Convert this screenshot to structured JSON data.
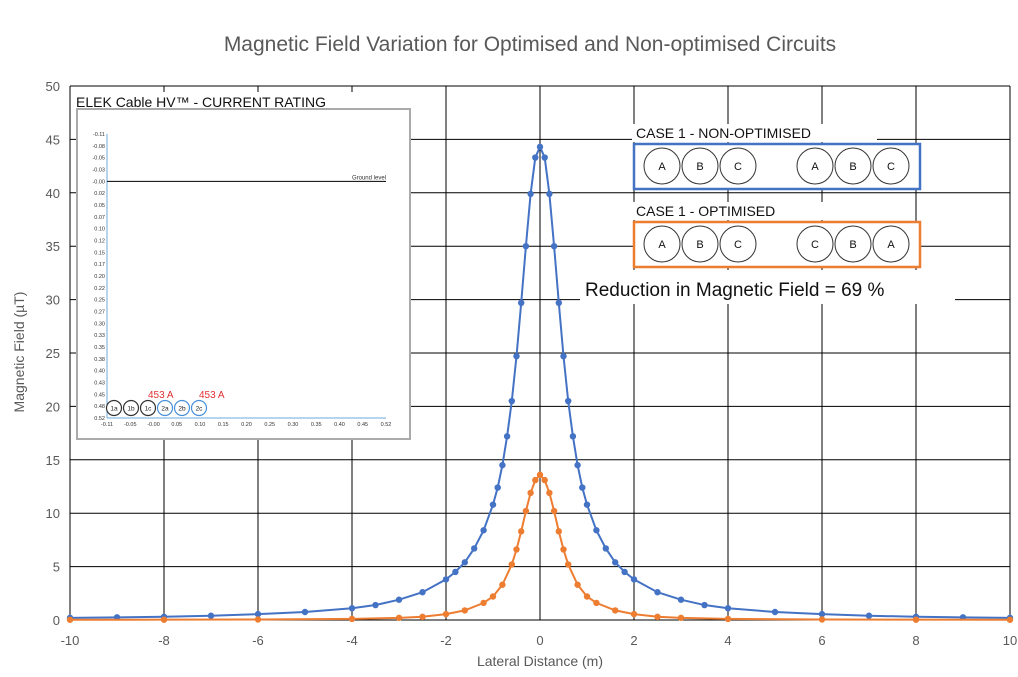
{
  "chart_data": {
    "type": "scatter",
    "title": "Magnetic Field Variation for Optimised and Non-optimised Circuits",
    "xlabel": "Lateral Distance (m)",
    "ylabel": "Magnetic Field (µT)",
    "xlim": [
      -10,
      10
    ],
    "ylim": [
      0,
      50
    ],
    "xticks": [
      -10,
      -8,
      -6,
      -4,
      -2,
      0,
      2,
      4,
      6,
      8,
      10
    ],
    "yticks": [
      0,
      5,
      10,
      15,
      20,
      25,
      30,
      35,
      40,
      45,
      50
    ],
    "grid": true,
    "series": [
      {
        "key": "non_optimised",
        "color": "#4472C4",
        "x": [
          -10,
          -9,
          -8,
          -7,
          -6,
          -5,
          -4,
          -3.5,
          -3,
          -2.5,
          -2,
          -1.8,
          -1.6,
          -1.4,
          -1.2,
          -1.0,
          -0.9,
          -0.8,
          -0.7,
          -0.6,
          -0.5,
          -0.4,
          -0.3,
          -0.2,
          -0.1,
          0,
          0.1,
          0.2,
          0.3,
          0.4,
          0.5,
          0.6,
          0.7,
          0.8,
          0.9,
          1.0,
          1.2,
          1.4,
          1.6,
          1.8,
          2,
          2.5,
          3,
          3.5,
          4,
          5,
          6,
          7,
          8,
          9,
          10
        ],
        "y": [
          0.2,
          0.25,
          0.3,
          0.4,
          0.55,
          0.75,
          1.1,
          1.4,
          1.9,
          2.6,
          3.8,
          4.5,
          5.4,
          6.7,
          8.4,
          10.8,
          12.4,
          14.5,
          17.2,
          20.5,
          24.7,
          29.7,
          35.0,
          39.9,
          43.3,
          44.3,
          43.3,
          39.9,
          35.0,
          29.7,
          24.7,
          20.5,
          17.2,
          14.5,
          12.4,
          10.8,
          8.4,
          6.7,
          5.4,
          4.5,
          3.8,
          2.6,
          1.9,
          1.4,
          1.1,
          0.75,
          0.55,
          0.4,
          0.3,
          0.25,
          0.2
        ]
      },
      {
        "key": "optimised",
        "color": "#ED7D31",
        "x": [
          -10,
          -8,
          -6,
          -4,
          -3,
          -2.5,
          -2,
          -1.6,
          -1.2,
          -1.0,
          -0.8,
          -0.6,
          -0.5,
          -0.4,
          -0.3,
          -0.2,
          -0.1,
          0,
          0.1,
          0.2,
          0.3,
          0.4,
          0.5,
          0.6,
          0.8,
          1.0,
          1.2,
          1.6,
          2,
          2.5,
          3,
          4,
          6,
          8,
          10
        ],
        "y": [
          0.02,
          0.03,
          0.05,
          0.1,
          0.2,
          0.3,
          0.55,
          0.9,
          1.6,
          2.2,
          3.3,
          5.2,
          6.6,
          8.3,
          10.2,
          11.9,
          13.1,
          13.6,
          13.1,
          11.9,
          10.2,
          8.3,
          6.6,
          5.2,
          3.3,
          2.2,
          1.6,
          0.9,
          0.55,
          0.3,
          0.2,
          0.1,
          0.05,
          0.03,
          0.02
        ]
      }
    ],
    "annotations": {
      "reduction": "Reduction in Magnetic Field = 69 %"
    }
  },
  "legend_boxes": [
    {
      "label": "CASE 1 - NON-OPTIMISED",
      "color": "#4472C4",
      "left_phases": [
        "A",
        "B",
        "C"
      ],
      "right_phases": [
        "A",
        "B",
        "C"
      ]
    },
    {
      "label": "CASE 1 - OPTIMISED",
      "color": "#ED7D31",
      "left_phases": [
        "A",
        "B",
        "C"
      ],
      "right_phases": [
        "C",
        "B",
        "A"
      ]
    }
  ],
  "inset": {
    "title": "ELEK Cable HV™ - CURRENT RATING",
    "ground_label": "Ground level",
    "y_ticks": [
      "-0.11",
      "-0.08",
      "-0.05",
      "-0.03",
      "-0.00",
      "0.02",
      "0.05",
      "0.07",
      "0.10",
      "0.12",
      "0.15",
      "0.17",
      "0.20",
      "0.22",
      "0.25",
      "0.27",
      "0.30",
      "0.33",
      "0.35",
      "0.38",
      "0.40",
      "0.43",
      "0.45",
      "0.48",
      "0.52"
    ],
    "x_ticks": [
      "-0.11",
      "-0.05",
      "-0.00",
      "0.05",
      "0.10",
      "0.15",
      "0.20",
      "0.25",
      "0.30",
      "0.35",
      "0.40",
      "0.45",
      "0.52"
    ],
    "cables": [
      "1a",
      "1b",
      "1c",
      "2a",
      "2b",
      "2c"
    ],
    "current_labels": [
      "453 A",
      "453 A"
    ],
    "colors": {
      "circuit1": "#333333",
      "circuit2": "#4a90d9",
      "current": "#e03030"
    }
  }
}
